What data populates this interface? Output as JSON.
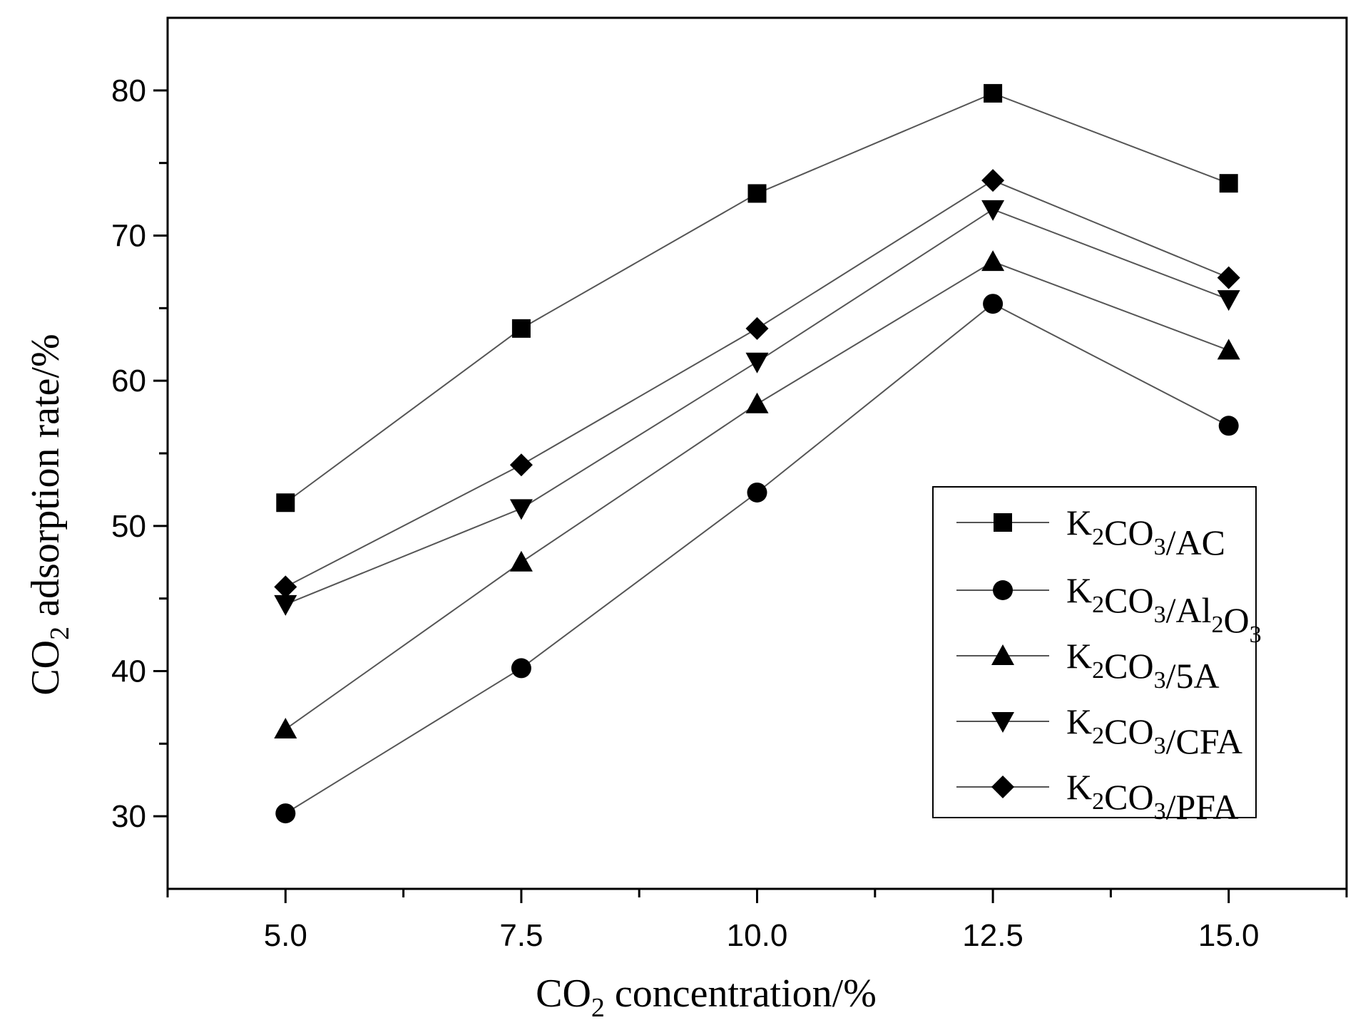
{
  "chart_data": {
    "type": "line",
    "title": "",
    "xlabel": {
      "main": "CO",
      "sub": "2",
      "rest": " concentration/%"
    },
    "ylabel": {
      "main": "CO",
      "sub": "2",
      "rest": " adsorption rate/%"
    },
    "x": [
      5.0,
      7.5,
      10.0,
      12.5,
      15.0
    ],
    "xlim": [
      3.75,
      16.25
    ],
    "ylim": [
      25,
      85
    ],
    "x_tick_labels": [
      "5.0",
      "7.5",
      "10.0",
      "12.5",
      "15.0"
    ],
    "y_tick_labels": [
      "30",
      "40",
      "50",
      "60",
      "70",
      "80"
    ],
    "y_ticks": [
      30,
      40,
      50,
      60,
      70,
      80
    ],
    "legend_position": "right-center",
    "series": [
      {
        "name": "K2CO3/AC",
        "marker": "square",
        "values": [
          51.6,
          63.6,
          72.9,
          79.8,
          73.6
        ],
        "label_parts": [
          [
            "K",
            ""
          ],
          [
            "2",
            "sub"
          ],
          [
            "CO",
            ""
          ],
          [
            "3",
            "sub"
          ],
          [
            "/AC",
            ""
          ]
        ]
      },
      {
        "name": "K2CO3/Al2O3",
        "marker": "circle",
        "values": [
          30.2,
          40.2,
          52.3,
          65.3,
          56.9
        ],
        "label_parts": [
          [
            "K",
            ""
          ],
          [
            "2",
            "sub"
          ],
          [
            "CO",
            ""
          ],
          [
            "3",
            "sub"
          ],
          [
            "/Al",
            ""
          ],
          [
            "2",
            "sub"
          ],
          [
            "O",
            ""
          ],
          [
            "3",
            "sub"
          ]
        ]
      },
      {
        "name": "K2CO3/5A",
        "marker": "triangle-up",
        "values": [
          36.0,
          47.5,
          58.4,
          68.2,
          62.1
        ],
        "label_parts": [
          [
            "K",
            ""
          ],
          [
            "2",
            "sub"
          ],
          [
            "CO",
            ""
          ],
          [
            "3",
            "sub"
          ],
          [
            "/5A",
            ""
          ]
        ]
      },
      {
        "name": "K2CO3/CFA",
        "marker": "triangle-down",
        "values": [
          44.6,
          51.2,
          61.3,
          71.8,
          65.6
        ],
        "label_parts": [
          [
            "K",
            ""
          ],
          [
            "2",
            "sub"
          ],
          [
            "CO",
            ""
          ],
          [
            "3",
            "sub"
          ],
          [
            "/CFA",
            ""
          ]
        ]
      },
      {
        "name": "K2CO3/PFA",
        "marker": "diamond",
        "values": [
          45.8,
          54.2,
          63.6,
          73.8,
          67.1
        ],
        "label_parts": [
          [
            "K",
            ""
          ],
          [
            "2",
            "sub"
          ],
          [
            "CO",
            ""
          ],
          [
            "3",
            "sub"
          ],
          [
            "/PFA",
            ""
          ]
        ]
      }
    ]
  }
}
